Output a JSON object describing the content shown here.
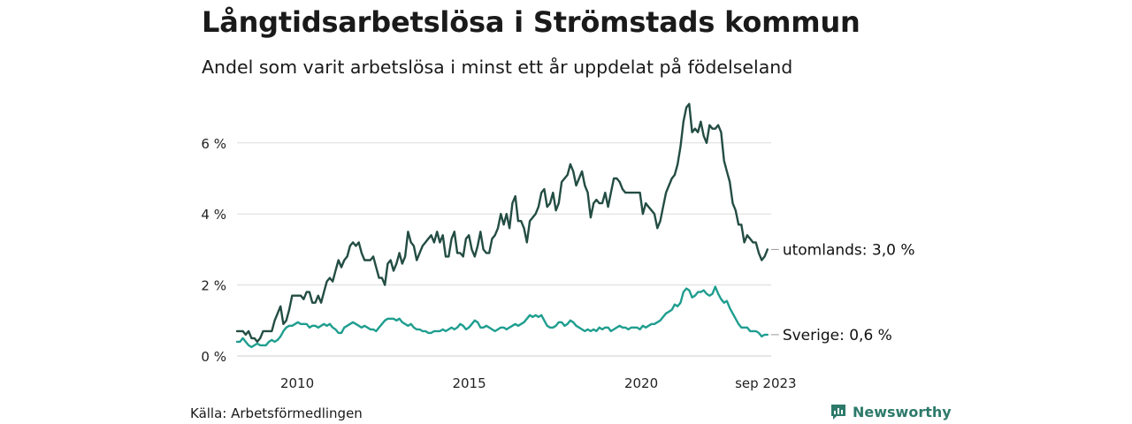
{
  "title": "Långtidsarbetslösa i Strömstads kommun",
  "subtitle": "Andel som varit arbetslösa i minst ett år uppdelat på födelseland",
  "source": "Källa: Arbetsförmedlingen",
  "brand": "Newsworthy",
  "colors": {
    "utomlands": "#234d43",
    "sverige": "#1f9e8f",
    "grid": "#dcdcdc",
    "brand": "#2d7a6b"
  },
  "chart_data": {
    "type": "line",
    "title": "Långtidsarbetslösa i Strömstads kommun",
    "xlabel": "",
    "ylabel": "",
    "x_start": 2008.25,
    "x_step": 0.08333,
    "xlim": [
      2008.25,
      2023.67
    ],
    "ylim": [
      0,
      7
    ],
    "y_ticks": [
      0,
      2,
      4,
      6
    ],
    "y_tick_labels": [
      "0 %",
      "2 %",
      "4 %",
      "6 %"
    ],
    "x_ticks": [
      2010,
      2015,
      2020,
      2023.67
    ],
    "x_tick_labels": [
      "2010",
      "2015",
      "2020",
      "sep 2023"
    ],
    "series": [
      {
        "name": "utomlands",
        "end_label": "utomlands: 3,0 %",
        "values": [
          0.7,
          0.7,
          0.7,
          0.6,
          0.7,
          0.5,
          0.5,
          0.4,
          0.5,
          0.7,
          0.7,
          0.7,
          0.7,
          1.0,
          1.2,
          1.4,
          0.9,
          1.0,
          1.3,
          1.7,
          1.7,
          1.7,
          1.7,
          1.6,
          1.8,
          1.8,
          1.5,
          1.5,
          1.7,
          1.5,
          1.8,
          2.1,
          2.2,
          2.1,
          2.4,
          2.7,
          2.5,
          2.7,
          2.8,
          3.1,
          3.2,
          3.1,
          3.2,
          2.9,
          2.7,
          2.7,
          2.7,
          2.8,
          2.5,
          2.2,
          2.2,
          2.0,
          2.6,
          2.7,
          2.4,
          2.6,
          2.9,
          2.6,
          2.8,
          3.5,
          3.2,
          3.1,
          2.7,
          2.9,
          3.1,
          3.2,
          3.3,
          3.4,
          3.2,
          3.5,
          3.2,
          3.4,
          2.8,
          2.8,
          3.3,
          3.5,
          2.9,
          2.9,
          2.8,
          3.3,
          3.4,
          3.0,
          2.8,
          3.1,
          3.5,
          3.0,
          2.9,
          2.9,
          3.3,
          3.4,
          3.6,
          4.0,
          3.7,
          4.0,
          3.6,
          4.3,
          4.5,
          3.8,
          3.8,
          3.6,
          3.2,
          3.8,
          3.9,
          4.0,
          4.2,
          4.6,
          4.7,
          4.2,
          4.3,
          4.6,
          4.1,
          4.3,
          4.9,
          5.0,
          5.1,
          5.4,
          5.2,
          4.8,
          5.0,
          5.2,
          4.8,
          4.6,
          3.9,
          4.3,
          4.4,
          4.3,
          4.3,
          4.6,
          4.2,
          4.6,
          5.0,
          5.0,
          4.9,
          4.7,
          4.6,
          4.6,
          4.6,
          4.6,
          4.6,
          4.6,
          4.0,
          4.3,
          4.2,
          4.1,
          4.0,
          3.6,
          3.8,
          4.2,
          4.6,
          4.8,
          5.0,
          5.1,
          5.4,
          5.9,
          6.6,
          7.0,
          7.1,
          6.3,
          6.4,
          6.3,
          6.6,
          6.2,
          6.0,
          6.5,
          6.4,
          6.4,
          6.5,
          6.3,
          5.5,
          5.2,
          4.9,
          4.3,
          4.1,
          3.7,
          3.7,
          3.2,
          3.4,
          3.3,
          3.2,
          3.2,
          2.9,
          2.7,
          2.8,
          3.0
        ]
      },
      {
        "name": "Sverige",
        "end_label": "Sverige: 0,6 %",
        "values": [
          0.4,
          0.4,
          0.5,
          0.4,
          0.3,
          0.25,
          0.3,
          0.35,
          0.3,
          0.3,
          0.3,
          0.4,
          0.45,
          0.4,
          0.45,
          0.55,
          0.7,
          0.8,
          0.85,
          0.85,
          0.9,
          0.95,
          0.9,
          0.9,
          0.9,
          0.8,
          0.85,
          0.85,
          0.8,
          0.85,
          0.9,
          0.85,
          0.9,
          0.8,
          0.75,
          0.65,
          0.65,
          0.8,
          0.85,
          0.9,
          0.95,
          0.9,
          0.85,
          0.8,
          0.85,
          0.8,
          0.75,
          0.75,
          0.7,
          0.8,
          0.9,
          1.0,
          1.05,
          1.05,
          1.05,
          1.0,
          1.05,
          0.95,
          0.9,
          0.85,
          0.9,
          0.8,
          0.75,
          0.75,
          0.7,
          0.7,
          0.65,
          0.65,
          0.7,
          0.7,
          0.7,
          0.75,
          0.7,
          0.75,
          0.8,
          0.75,
          0.8,
          0.9,
          0.85,
          0.75,
          0.8,
          0.9,
          1.0,
          0.95,
          0.8,
          0.8,
          0.85,
          0.8,
          0.75,
          0.7,
          0.75,
          0.8,
          0.8,
          0.75,
          0.8,
          0.85,
          0.9,
          0.85,
          0.9,
          0.95,
          1.05,
          1.15,
          1.1,
          1.15,
          1.1,
          1.15,
          1.0,
          0.85,
          0.8,
          0.8,
          0.85,
          0.95,
          0.95,
          0.85,
          0.9,
          1.0,
          0.95,
          0.85,
          0.8,
          0.75,
          0.7,
          0.75,
          0.7,
          0.75,
          0.7,
          0.8,
          0.75,
          0.8,
          0.8,
          0.7,
          0.75,
          0.8,
          0.85,
          0.8,
          0.8,
          0.75,
          0.8,
          0.8,
          0.8,
          0.75,
          0.85,
          0.8,
          0.85,
          0.9,
          0.9,
          0.95,
          1.0,
          1.1,
          1.2,
          1.25,
          1.3,
          1.45,
          1.4,
          1.5,
          1.8,
          1.9,
          1.85,
          1.65,
          1.7,
          1.8,
          1.8,
          1.85,
          1.75,
          1.7,
          1.75,
          1.95,
          1.75,
          1.6,
          1.5,
          1.55,
          1.35,
          1.2,
          1.05,
          0.9,
          0.8,
          0.8,
          0.8,
          0.7,
          0.7,
          0.7,
          0.65,
          0.55,
          0.6,
          0.6
        ]
      }
    ]
  }
}
